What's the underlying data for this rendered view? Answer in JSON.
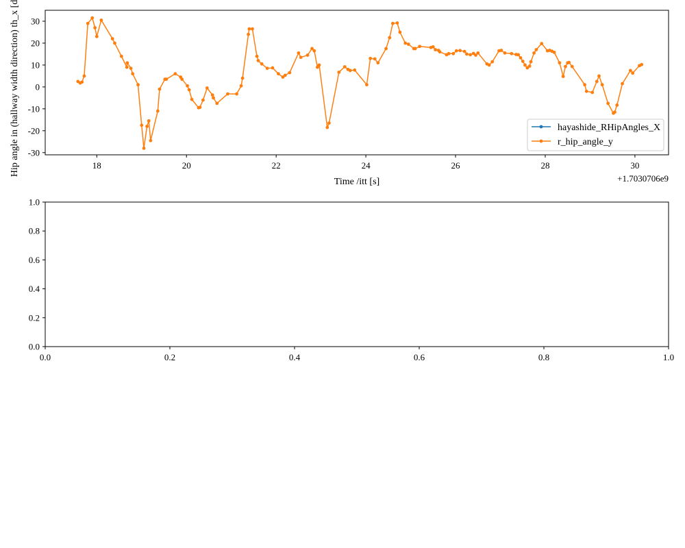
{
  "chart_data": [
    {
      "type": "line",
      "xlabel": "Time /itt [s]",
      "ylabel": "Hip angle in (hallway width direction) th_x [deg]",
      "offset_text": "+1.7030706e9",
      "xlim": [
        16.85,
        30.75
      ],
      "ylim": [
        -31,
        35
      ],
      "x_ticks": [
        18,
        20,
        22,
        24,
        26,
        28,
        30
      ],
      "y_ticks": [
        -30,
        -20,
        -10,
        0,
        10,
        20,
        30
      ],
      "legend_position": "lower right",
      "series": [
        {
          "name": "hayashide_RHipAngles_X",
          "color": "#1f77b4",
          "points": []
        },
        {
          "name": "r_hip_angle_y",
          "color": "#ff7f0e",
          "points": [
            [
              17.58,
              2.5
            ],
            [
              17.63,
              1.8
            ],
            [
              17.67,
              2.2
            ],
            [
              17.72,
              5
            ],
            [
              17.8,
              29
            ],
            [
              17.9,
              31.5
            ],
            [
              17.96,
              27
            ],
            [
              18.0,
              23
            ],
            [
              18.1,
              30.5
            ],
            [
              18.35,
              22
            ],
            [
              18.4,
              20
            ],
            [
              18.55,
              14
            ],
            [
              18.67,
              9
            ],
            [
              18.68,
              11
            ],
            [
              18.76,
              8.5
            ],
            [
              18.8,
              6
            ],
            [
              18.92,
              1
            ],
            [
              19.0,
              -17.5
            ],
            [
              19.05,
              -28
            ],
            [
              19.12,
              -18
            ],
            [
              19.16,
              -15.5
            ],
            [
              19.2,
              -24.5
            ],
            [
              19.36,
              -11
            ],
            [
              19.4,
              -1
            ],
            [
              19.52,
              3.5
            ],
            [
              19.55,
              3.5
            ],
            [
              19.75,
              6
            ],
            [
              19.87,
              4.5
            ],
            [
              19.9,
              3.5
            ],
            [
              20.02,
              0.5
            ],
            [
              20.06,
              -1.3
            ],
            [
              20.12,
              -5.7
            ],
            [
              20.27,
              -9.5
            ],
            [
              20.3,
              -9.3
            ],
            [
              20.37,
              -6
            ],
            [
              20.46,
              -0.5
            ],
            [
              20.58,
              -3.7
            ],
            [
              20.6,
              -5
            ],
            [
              20.68,
              -7.5
            ],
            [
              20.92,
              -3.2
            ],
            [
              21.12,
              -3.2
            ],
            [
              21.22,
              0.5
            ],
            [
              21.25,
              4
            ],
            [
              21.38,
              24
            ],
            [
              21.4,
              26.5
            ],
            [
              21.47,
              26.5
            ],
            [
              21.57,
              14
            ],
            [
              21.6,
              12
            ],
            [
              21.68,
              10.5
            ],
            [
              21.8,
              8.5
            ],
            [
              21.92,
              8.7
            ],
            [
              22.05,
              6
            ],
            [
              22.15,
              4.5
            ],
            [
              22.2,
              5.3
            ],
            [
              22.3,
              6.5
            ],
            [
              22.5,
              15.5
            ],
            [
              22.55,
              13.5
            ],
            [
              22.7,
              14.5
            ],
            [
              22.8,
              17.5
            ],
            [
              22.85,
              16.5
            ],
            [
              22.92,
              9
            ],
            [
              22.96,
              10
            ],
            [
              23.14,
              -18.5
            ],
            [
              23.18,
              -16.5
            ],
            [
              23.4,
              6.7
            ],
            [
              23.53,
              9.2
            ],
            [
              23.6,
              8
            ],
            [
              23.65,
              7.5
            ],
            [
              23.75,
              7.7
            ],
            [
              24.02,
              1
            ],
            [
              24.1,
              13
            ],
            [
              24.2,
              12.8
            ],
            [
              24.27,
              11
            ],
            [
              24.45,
              17.5
            ],
            [
              24.53,
              22.5
            ],
            [
              24.6,
              29
            ],
            [
              24.7,
              29.2
            ],
            [
              24.76,
              25
            ],
            [
              24.88,
              20
            ],
            [
              24.95,
              19.5
            ],
            [
              25.07,
              17.5
            ],
            [
              25.1,
              17.5
            ],
            [
              25.2,
              18.5
            ],
            [
              25.45,
              18
            ],
            [
              25.5,
              18.3
            ],
            [
              25.55,
              17
            ],
            [
              25.62,
              16.7
            ],
            [
              25.65,
              16
            ],
            [
              25.8,
              14.7
            ],
            [
              25.85,
              15.2
            ],
            [
              25.95,
              15.2
            ],
            [
              26.02,
              16.5
            ],
            [
              26.1,
              16.6
            ],
            [
              26.2,
              16.2
            ],
            [
              26.25,
              15
            ],
            [
              26.33,
              14.7
            ],
            [
              26.4,
              15.3
            ],
            [
              26.45,
              14.5
            ],
            [
              26.5,
              15.5
            ],
            [
              26.7,
              10.5
            ],
            [
              26.75,
              10
            ],
            [
              26.82,
              11.5
            ],
            [
              26.97,
              16.5
            ],
            [
              27.02,
              16.7
            ],
            [
              27.1,
              15.5
            ],
            [
              27.25,
              15.2
            ],
            [
              27.35,
              14.8
            ],
            [
              27.4,
              14.7
            ],
            [
              27.45,
              13.3
            ],
            [
              27.5,
              11.7
            ],
            [
              27.55,
              10
            ],
            [
              27.6,
              8.7
            ],
            [
              27.65,
              9.5
            ],
            [
              27.68,
              11.5
            ],
            [
              27.75,
              15.5
            ],
            [
              27.8,
              17
            ],
            [
              27.92,
              19.8
            ],
            [
              28.05,
              16.5
            ],
            [
              28.1,
              16.7
            ],
            [
              28.15,
              16.3
            ],
            [
              28.2,
              15.8
            ],
            [
              28.32,
              11
            ],
            [
              28.4,
              4.8
            ],
            [
              28.45,
              9.3
            ],
            [
              28.5,
              11
            ],
            [
              28.53,
              11.2
            ],
            [
              28.6,
              9.3
            ],
            [
              28.88,
              1
            ],
            [
              28.92,
              -2
            ],
            [
              29.05,
              -2.5
            ],
            [
              29.15,
              2.5
            ],
            [
              29.2,
              5
            ],
            [
              29.27,
              1
            ],
            [
              29.4,
              -7.5
            ],
            [
              29.52,
              -12
            ],
            [
              29.55,
              -11.5
            ],
            [
              29.6,
              -8.3
            ],
            [
              29.72,
              1.5
            ],
            [
              29.9,
              7.5
            ],
            [
              29.95,
              6.3
            ],
            [
              30.1,
              9.7
            ],
            [
              30.15,
              10.2
            ]
          ]
        }
      ]
    },
    {
      "type": "line",
      "xlabel": "",
      "ylabel": "",
      "xlim": [
        0,
        1
      ],
      "ylim": [
        0,
        1
      ],
      "x_ticks": [
        "0.0",
        "0.2",
        "0.4",
        "0.6",
        "0.8",
        "1.0"
      ],
      "y_ticks": [
        "0.0",
        "0.2",
        "0.4",
        "0.6",
        "0.8",
        "1.0"
      ],
      "series": []
    }
  ]
}
